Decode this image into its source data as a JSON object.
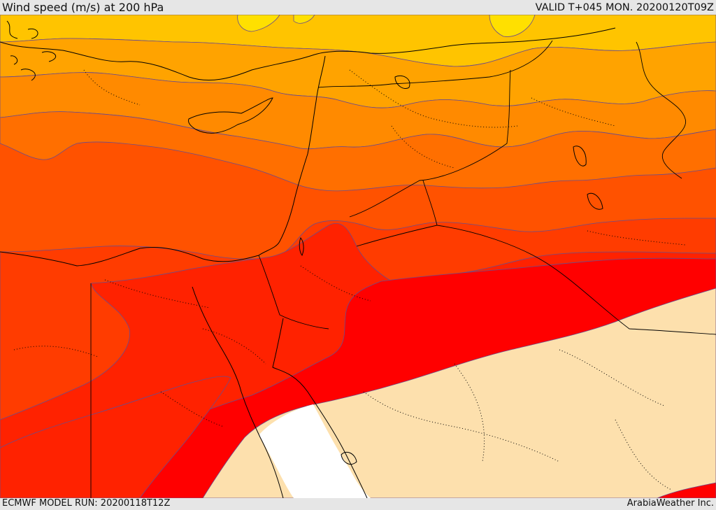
{
  "header": {
    "title": "Wind speed (m/s) at 200 hPa",
    "valid_time": "VALID T+045 MON. 20200120T09Z"
  },
  "footer": {
    "model_run": "ECMWF MODEL RUN: 20200118T12Z",
    "credit": "ArabiaWeather Inc."
  },
  "map": {
    "field": "wind speed at 200 hPa",
    "region": "Eastern Mediterranean, Levant, Egypt, northern Arabia",
    "palette": [
      "#ffe400",
      "#ffc400",
      "#ffa500",
      "#ff8a00",
      "#ff6f00",
      "#ff5200",
      "#ff3a00",
      "#ff2200",
      "#ff0000",
      "#fde0ad",
      "#ffffff"
    ],
    "colors": {
      "contour_line": "#6a4c8c",
      "coastline": "#000000",
      "border_dotted": "#000000"
    }
  }
}
